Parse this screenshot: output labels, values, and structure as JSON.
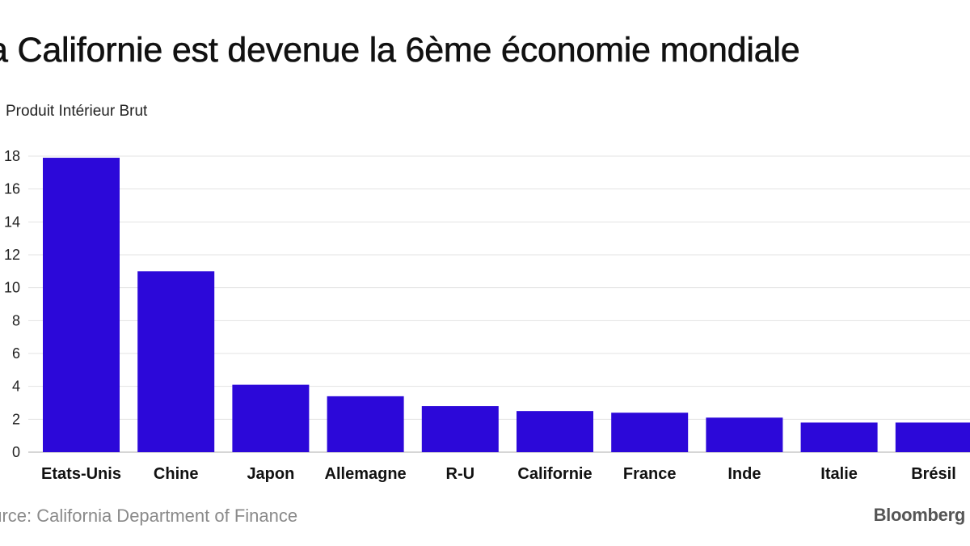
{
  "header": {
    "title": "a Californie est devenue la 6ème économie mondiale",
    "subtitle": "Produit Intérieur Brut"
  },
  "footer": {
    "source": "ource: California Department of Finance",
    "brand": "Bloomberg"
  },
  "colors": {
    "bar": "#2c08d9",
    "grid": "#e3e3e3",
    "axis": "#c8c8c8"
  },
  "chart_data": {
    "type": "bar",
    "categories": [
      "Etats-Unis",
      "Chine",
      "Japon",
      "Allemagne",
      "R-U",
      "Californie",
      "France",
      "Inde",
      "Italie",
      "Brésil"
    ],
    "values": [
      17.9,
      11.0,
      4.1,
      3.4,
      2.8,
      2.5,
      2.4,
      2.1,
      1.8,
      1.8
    ],
    "ylim": [
      0,
      18
    ],
    "yticks": [
      0,
      2,
      4,
      6,
      8,
      10,
      12,
      14,
      16,
      18
    ],
    "ytick_labels": [
      "0",
      "2",
      "4",
      "6",
      "8",
      "10",
      "12",
      "14",
      "16",
      "18"
    ],
    "grid": true,
    "title": "a Californie est devenue la 6ème économie mondiale",
    "ylabel": "Produit Intérieur Brut"
  }
}
